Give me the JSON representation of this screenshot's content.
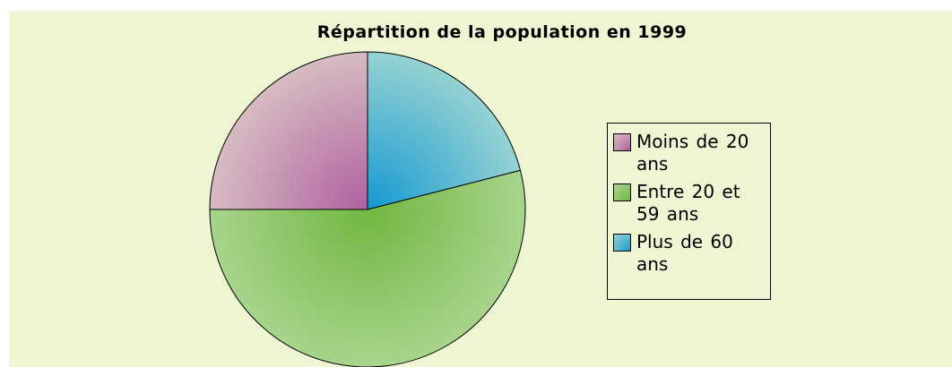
{
  "chart_data": {
    "type": "pie",
    "title": "Répartition de la population en 1999",
    "categories": [
      "Moins de 20 ans",
      "Entre 20 et 59 ans",
      "Plus de 60 ans"
    ],
    "values": [
      25,
      54,
      21
    ],
    "colors": [
      "#d6bcc2",
      "#a8d48c",
      "#96d2d2"
    ],
    "center_colors": [
      "#b0609e",
      "#70b840",
      "#1499d2"
    ],
    "legend": "right"
  }
}
